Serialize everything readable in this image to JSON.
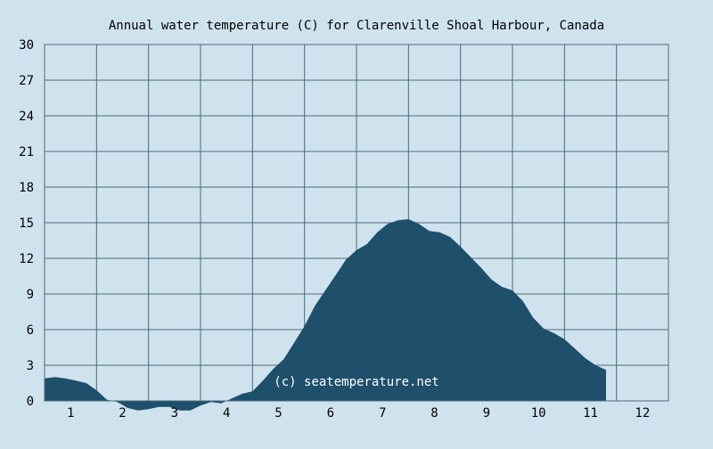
{
  "chart_data": {
    "type": "area",
    "title": "Annual water temperature (C) for Clarenville Shoal Harbour, Canada",
    "xlabel": "",
    "ylabel": "",
    "xlim": [
      0.5,
      12.5
    ],
    "ylim": [
      0,
      30
    ],
    "y_ticks": [
      0,
      3,
      6,
      9,
      12,
      15,
      18,
      21,
      24,
      27,
      30
    ],
    "x_ticks": [
      1,
      2,
      3,
      4,
      5,
      6,
      7,
      8,
      9,
      10,
      11,
      12
    ],
    "grid": true,
    "watermark": "(c) seatemperature.net",
    "colors": {
      "background": "#cfe3ee",
      "fill": "#1e4f6b",
      "grid": "#4d6878",
      "axis": "#4d6878"
    },
    "series": [
      {
        "values": [
          [
            0.5,
            1.9
          ],
          [
            0.7,
            2.0
          ],
          [
            0.9,
            1.9
          ],
          [
            1.1,
            1.7
          ],
          [
            1.3,
            1.5
          ],
          [
            1.5,
            0.9
          ],
          [
            1.7,
            0.1
          ],
          [
            1.9,
            -0.1
          ],
          [
            2.1,
            -0.6
          ],
          [
            2.3,
            -0.8
          ],
          [
            2.5,
            -0.7
          ],
          [
            2.7,
            -0.5
          ],
          [
            2.9,
            -0.5
          ],
          [
            3.1,
            -0.8
          ],
          [
            3.3,
            -0.8
          ],
          [
            3.5,
            -0.4
          ],
          [
            3.7,
            -0.1
          ],
          [
            3.9,
            -0.2
          ],
          [
            4.1,
            0.2
          ],
          [
            4.3,
            0.6
          ],
          [
            4.5,
            0.8
          ],
          [
            4.7,
            1.7
          ],
          [
            4.9,
            2.7
          ],
          [
            5.1,
            3.5
          ],
          [
            5.3,
            4.9
          ],
          [
            5.5,
            6.3
          ],
          [
            5.7,
            8.0
          ],
          [
            5.9,
            9.3
          ],
          [
            6.1,
            10.6
          ],
          [
            6.3,
            11.9
          ],
          [
            6.5,
            12.7
          ],
          [
            6.7,
            13.2
          ],
          [
            6.9,
            14.2
          ],
          [
            7.1,
            14.9
          ],
          [
            7.3,
            15.2
          ],
          [
            7.5,
            15.3
          ],
          [
            7.7,
            14.9
          ],
          [
            7.9,
            14.3
          ],
          [
            8.1,
            14.2
          ],
          [
            8.3,
            13.8
          ],
          [
            8.5,
            13.0
          ],
          [
            8.7,
            12.1
          ],
          [
            8.9,
            11.2
          ],
          [
            9.1,
            10.2
          ],
          [
            9.3,
            9.6
          ],
          [
            9.5,
            9.3
          ],
          [
            9.7,
            8.4
          ],
          [
            9.9,
            7.0
          ],
          [
            10.1,
            6.1
          ],
          [
            10.3,
            5.7
          ],
          [
            10.5,
            5.2
          ],
          [
            10.7,
            4.4
          ],
          [
            10.9,
            3.6
          ],
          [
            11.1,
            3.0
          ],
          [
            11.3,
            2.6
          ]
        ]
      }
    ]
  }
}
